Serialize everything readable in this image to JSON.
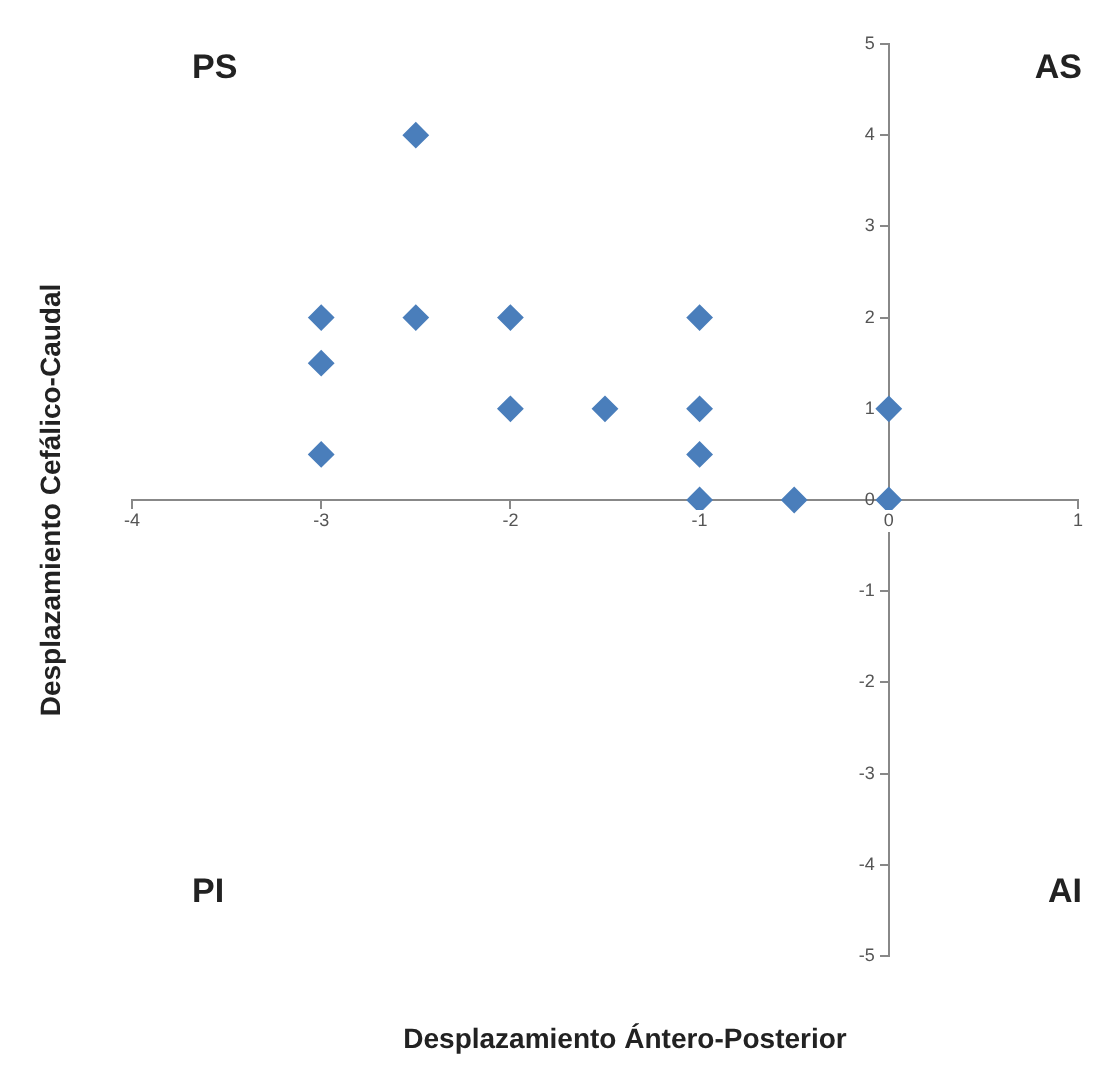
{
  "chart_data": {
    "type": "scatter",
    "xlabel": "Desplazamiento Ántero-Posterior",
    "ylabel": "Desplazamiento Cefálico-Caudal",
    "annotations": [
      "PS",
      "AS",
      "PI",
      "AI"
    ],
    "series": [
      {
        "color": "#4a7ebb",
        "x": [
          -2.5,
          -3,
          -2.5,
          -2,
          -1,
          -3,
          -2,
          -1.5,
          -1,
          0,
          -3,
          -1,
          -1,
          -0.5,
          0
        ],
        "values": [
          4,
          2,
          2,
          2,
          2,
          1.5,
          1,
          1,
          1,
          1,
          0.5,
          0.5,
          0,
          0,
          0
        ]
      }
    ],
    "xlim": [
      -4,
      1
    ],
    "xticks": [
      -4,
      -3,
      -2,
      -1,
      0,
      1
    ],
    "ylim": [
      -5,
      5
    ],
    "yticks": [
      -5,
      -4,
      -3,
      -2,
      -1,
      0,
      1,
      2,
      3,
      4,
      5
    ],
    "marker": "diamond",
    "grid": false,
    "legend": false
  }
}
